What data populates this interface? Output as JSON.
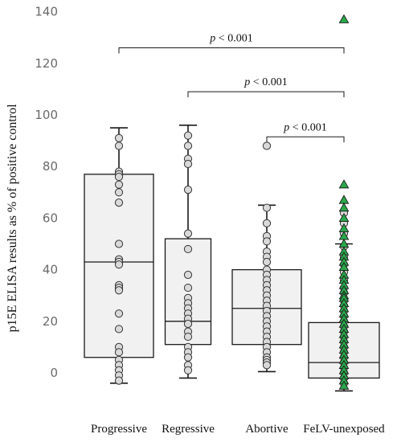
{
  "chart_data": {
    "type": "box",
    "ylabel": "p15E ELISA results as % of positive control",
    "xlabel": "",
    "ylim": [
      -8,
      142
    ],
    "yticks": [
      0,
      20,
      40,
      60,
      80,
      100,
      120,
      140
    ],
    "categories": [
      "Progressive",
      "Regressive",
      "Abortive",
      "FeLV-unexposed"
    ],
    "boxes": [
      {
        "category": "Progressive",
        "whisker_low": -4,
        "q1": 6,
        "median": 43,
        "q3": 77,
        "whisker_high": 95
      },
      {
        "category": "Regressive",
        "whisker_low": -2,
        "q1": 11,
        "median": 20,
        "q3": 52,
        "whisker_high": 96
      },
      {
        "category": "Abortive",
        "whisker_low": 0.5,
        "q1": 11,
        "median": 25,
        "q3": 40,
        "whisker_high": 65
      },
      {
        "category": "FeLV-unexposed",
        "whisker_low": -7,
        "q1": -2,
        "median": 4,
        "q3": 19.5,
        "whisker_high": 50
      }
    ],
    "points": [
      {
        "category": "Progressive",
        "marker": "circle",
        "values": [
          91,
          88,
          78,
          77,
          76,
          73,
          70,
          66,
          50,
          44,
          43,
          42,
          34,
          33,
          32,
          23,
          17,
          10,
          8,
          5,
          3,
          1,
          -1,
          -3
        ]
      },
      {
        "category": "Regressive",
        "marker": "circle",
        "values": [
          92,
          88,
          83,
          81,
          71,
          54,
          48,
          38,
          33,
          29,
          27,
          25,
          23,
          21,
          19,
          16,
          14,
          10,
          8,
          6,
          3,
          1
        ]
      },
      {
        "category": "Abortive",
        "marker": "circle",
        "values": [
          88,
          64,
          58,
          53,
          51,
          47,
          45,
          43,
          40,
          38,
          36,
          34,
          32,
          30,
          28,
          26,
          24,
          22,
          20,
          18,
          16,
          14,
          12,
          10,
          8,
          6,
          5,
          4,
          3
        ]
      },
      {
        "category": "FeLV-unexposed",
        "marker": "circle",
        "values": [
          62,
          58,
          54,
          49,
          45,
          42,
          39,
          36,
          33,
          31,
          28,
          26,
          24,
          22,
          20,
          18,
          16,
          14,
          12,
          10,
          8,
          6,
          4,
          2,
          0,
          -2,
          -4
        ]
      },
      {
        "category": "FeLV-unexposed",
        "marker": "triangle",
        "values": [
          137,
          73,
          67,
          64,
          60,
          56,
          53,
          50,
          47,
          45,
          43,
          41,
          38,
          36,
          34,
          32,
          30,
          29,
          27,
          25,
          23,
          21,
          19,
          17,
          15,
          13,
          11,
          9,
          7,
          5,
          3,
          1,
          -1,
          -3,
          -5
        ]
      }
    ],
    "significance": [
      {
        "from": "Progressive",
        "to": "FeLV-unexposed",
        "y": 126,
        "label": "p < 0.001"
      },
      {
        "from": "Regressive",
        "to": "FeLV-unexposed",
        "y": 109,
        "label": "p < 0.001"
      },
      {
        "from": "Abortive",
        "to": "FeLV-unexposed",
        "y": 91.5,
        "label": "p < 0.001"
      }
    ],
    "colors": {
      "box_fill": "#f1f1f1",
      "stroke": "#1a1a1a",
      "point_fill": "#d9d9d9",
      "triangle_fill": "#2aa84a",
      "tick_text": "#6a6a6a"
    },
    "grid": false,
    "legend": "none"
  }
}
